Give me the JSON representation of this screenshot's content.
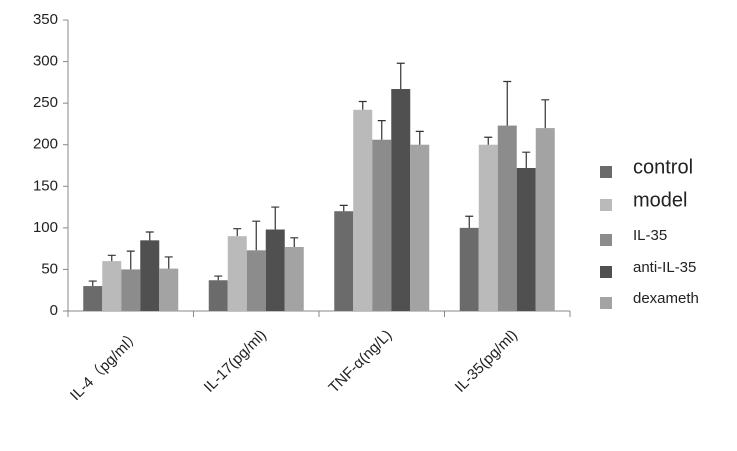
{
  "chart_data": {
    "type": "bar",
    "categories": [
      "IL-4（pg/ml）",
      "IL-17(pg/ml)",
      "TNF-α(ng/L)",
      "IL-35(pg/ml)"
    ],
    "series": [
      {
        "name": "control",
        "color": "#6b6b6b",
        "values": [
          30,
          37,
          120,
          100
        ],
        "errors": [
          6,
          5,
          7,
          14
        ]
      },
      {
        "name": "model",
        "color": "#bababa",
        "values": [
          60,
          90,
          242,
          200
        ],
        "errors": [
          7,
          9,
          10,
          9
        ]
      },
      {
        "name": "IL-35",
        "color": "#8c8c8c",
        "values": [
          50,
          73,
          206,
          223
        ],
        "errors": [
          22,
          35,
          23,
          53
        ]
      },
      {
        "name": "anti-IL-35",
        "color": "#505050",
        "values": [
          85,
          98,
          267,
          172
        ],
        "errors": [
          10,
          27,
          31,
          19
        ]
      },
      {
        "name": "dexameth",
        "color": "#a3a3a3",
        "values": [
          51,
          77,
          200,
          220
        ],
        "errors": [
          14,
          11,
          16,
          34
        ]
      }
    ],
    "ylim": [
      0,
      350
    ],
    "yticks": [
      0,
      50,
      100,
      150,
      200,
      250,
      300,
      350
    ],
    "legend": "right"
  }
}
